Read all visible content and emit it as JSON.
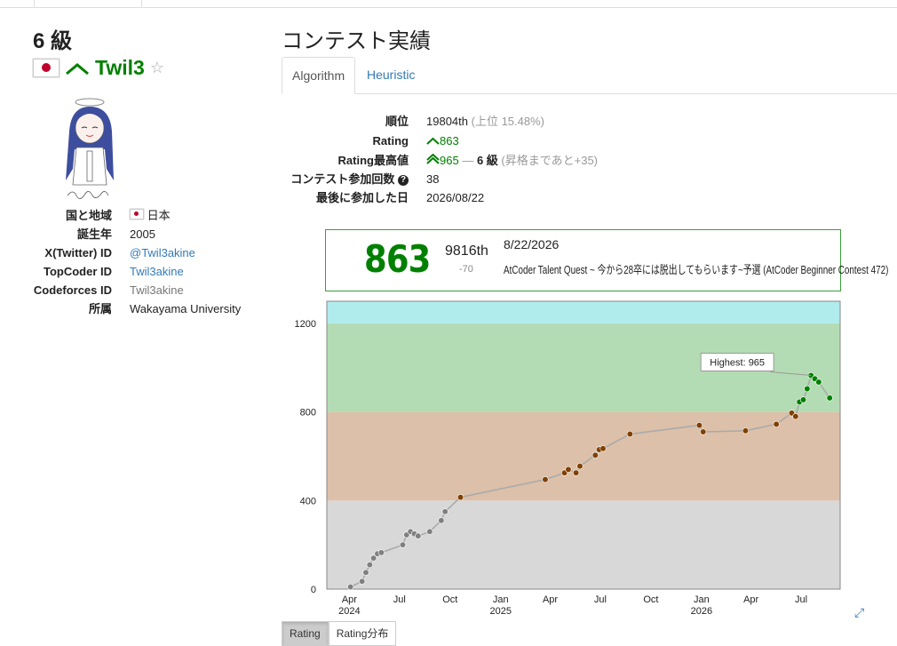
{
  "profile": {
    "kyu": "6 級",
    "username": "Twil3",
    "info_rows": [
      {
        "label": "国と地域",
        "value": "日本"
      },
      {
        "label": "誕生年",
        "value": "2005"
      },
      {
        "label": "X(Twitter) ID",
        "value": "@Twil3akine"
      },
      {
        "label": "TopCoder ID",
        "value": "Twil3akine"
      },
      {
        "label": "Codeforces ID",
        "value": "Twil3akine"
      },
      {
        "label": "所属",
        "value": "Wakayama University"
      }
    ]
  },
  "page": {
    "title": "コンテスト実績",
    "tabs": [
      "Algorithm",
      "Heuristic"
    ]
  },
  "stats": {
    "rank_label": "順位",
    "rank_value": "19804th",
    "rank_note": "(上位 15.48%)",
    "rating_label": "Rating",
    "rating_value": "863",
    "max_label": "Rating最高値",
    "max_value": "965",
    "max_sep": "—",
    "max_kyu": "6 級",
    "max_note": "(昇格まであと+35)",
    "count_label": "コンテスト参加回数",
    "count_value": "38",
    "last_label": "最後に参加した日",
    "last_value": "2026/08/22"
  },
  "latest": {
    "rating": "863",
    "rank": "9816th",
    "rank_diff": "-70",
    "date": "8/22/2026",
    "contest": "AtCoder Talent Quest ~ 今から28卒には脱出してもらいます~予選 (AtCoder Beginner Contest 472)"
  },
  "chart_data": {
    "type": "line",
    "ylim": [
      0,
      1300
    ],
    "yticks": [
      "0",
      "400",
      "800",
      "1200"
    ],
    "xticks": [
      {
        "label": "Apr",
        "year": "2024",
        "x": "2024-04-01"
      },
      {
        "label": "Jul",
        "year": "",
        "x": "2024-07-01"
      },
      {
        "label": "Oct",
        "year": "",
        "x": "2024-10-01"
      },
      {
        "label": "Jan",
        "year": "2025",
        "x": "2025-01-01"
      },
      {
        "label": "Apr",
        "year": "",
        "x": "2025-04-01"
      },
      {
        "label": "Jul",
        "year": "",
        "x": "2025-07-01"
      },
      {
        "label": "Oct",
        "year": "",
        "x": "2025-10-01"
      },
      {
        "label": "Jan",
        "year": "2026",
        "x": "2026-01-01"
      },
      {
        "label": "Apr",
        "year": "",
        "x": "2026-04-01"
      },
      {
        "label": "Jul",
        "year": "",
        "x": "2026-07-01"
      }
    ],
    "bands": [
      {
        "from": 0,
        "to": 400,
        "color": "#d8d8d8"
      },
      {
        "from": 400,
        "to": 800,
        "color": "#dcc0a9"
      },
      {
        "from": 800,
        "to": 1200,
        "color": "#b4dcb4"
      },
      {
        "from": 1200,
        "to": 1300,
        "color": "#b0ecec"
      }
    ],
    "series": [
      {
        "points": [
          {
            "x": "2024-04-03",
            "y": 10
          },
          {
            "x": "2024-04-24",
            "y": 35
          },
          {
            "x": "2024-05-01",
            "y": 75
          },
          {
            "x": "2024-05-08",
            "y": 110
          },
          {
            "x": "2024-05-15",
            "y": 140
          },
          {
            "x": "2024-05-22",
            "y": 160
          },
          {
            "x": "2024-05-29",
            "y": 165
          },
          {
            "x": "2024-07-07",
            "y": 200
          },
          {
            "x": "2024-07-14",
            "y": 245
          },
          {
            "x": "2024-07-21",
            "y": 260
          },
          {
            "x": "2024-07-28",
            "y": 250
          },
          {
            "x": "2024-08-04",
            "y": 240
          },
          {
            "x": "2024-08-25",
            "y": 260
          },
          {
            "x": "2024-09-15",
            "y": 310
          },
          {
            "x": "2024-09-22",
            "y": 350
          },
          {
            "x": "2024-10-20",
            "y": 415
          },
          {
            "x": "2025-03-23",
            "y": 495
          },
          {
            "x": "2025-04-27",
            "y": 525
          },
          {
            "x": "2025-05-04",
            "y": 540
          },
          {
            "x": "2025-05-18",
            "y": 525
          },
          {
            "x": "2025-05-25",
            "y": 555
          },
          {
            "x": "2025-06-22",
            "y": 605
          },
          {
            "x": "2025-06-29",
            "y": 630
          },
          {
            "x": "2025-07-06",
            "y": 635
          },
          {
            "x": "2025-08-24",
            "y": 700
          },
          {
            "x": "2025-12-28",
            "y": 740
          },
          {
            "x": "2026-01-04",
            "y": 710
          },
          {
            "x": "2026-03-22",
            "y": 715
          },
          {
            "x": "2026-05-17",
            "y": 745
          },
          {
            "x": "2026-06-14",
            "y": 795
          },
          {
            "x": "2026-06-21",
            "y": 780
          },
          {
            "x": "2026-06-28",
            "y": 845
          },
          {
            "x": "2026-07-05",
            "y": 855
          },
          {
            "x": "2026-07-12",
            "y": 905
          },
          {
            "x": "2026-07-19",
            "y": 965
          },
          {
            "x": "2026-07-26",
            "y": 950
          },
          {
            "x": "2026-08-02",
            "y": 935
          },
          {
            "x": "2026-08-22",
            "y": 863
          }
        ]
      }
    ],
    "annotation": "Highest: 965",
    "grid": false
  },
  "buttons": [
    "Rating",
    "Rating分布"
  ]
}
